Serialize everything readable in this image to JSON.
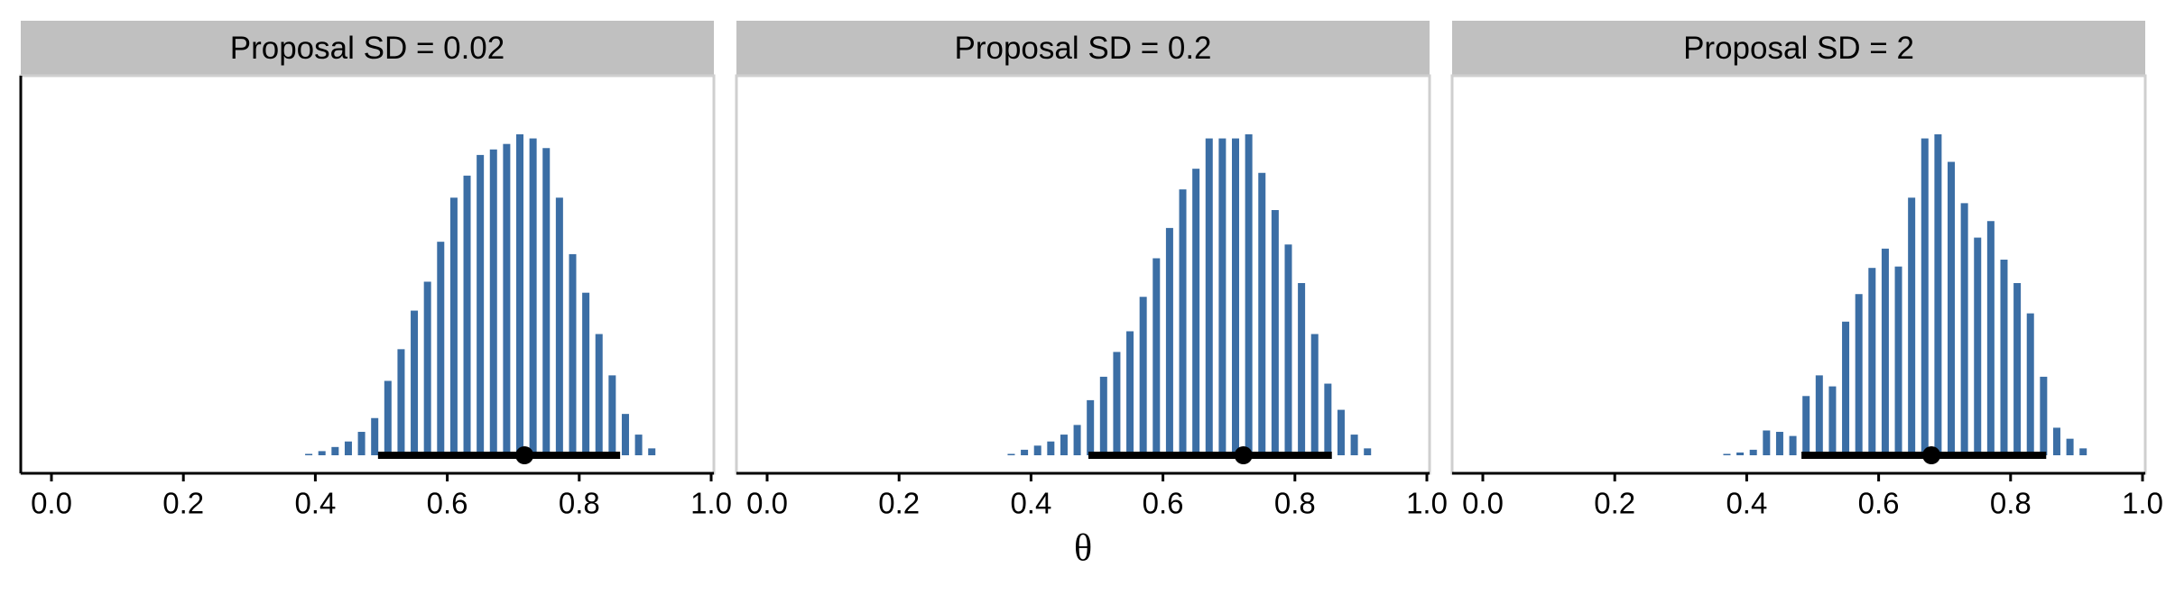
{
  "chart_data": [
    {
      "type": "bar",
      "title": "Proposal SD = 0.02",
      "color": "#3b6ea5",
      "x": [
        0.39,
        0.41,
        0.43,
        0.45,
        0.47,
        0.49,
        0.51,
        0.53,
        0.55,
        0.57,
        0.59,
        0.61,
        0.63,
        0.65,
        0.67,
        0.69,
        0.71,
        0.73,
        0.75,
        0.77,
        0.79,
        0.81,
        0.83,
        0.85,
        0.87,
        0.89,
        0.91
      ],
      "values": [
        1,
        3,
        6,
        10,
        17,
        27,
        54,
        77,
        105,
        126,
        155,
        187,
        203,
        218,
        222,
        226,
        233,
        230,
        223,
        187,
        146,
        118,
        88,
        58,
        30,
        15,
        5
      ],
      "point": 0.717,
      "interval": [
        0.495,
        0.862
      ],
      "xlim": [
        0,
        1
      ],
      "ylim": [
        0,
        250
      ],
      "xticks": [
        {
          "value": 0,
          "label": "0.0"
        },
        0.2,
        0.4,
        0.6,
        0.8,
        {
          "value": 1,
          "label": "1.0"
        }
      ]
    },
    {
      "type": "bar",
      "title": "Proposal SD = 0.2",
      "color": "#3b6ea5",
      "xlabel": "θ",
      "x": [
        0.37,
        0.39,
        0.41,
        0.43,
        0.45,
        0.47,
        0.49,
        0.51,
        0.53,
        0.55,
        0.57,
        0.59,
        0.61,
        0.63,
        0.65,
        0.67,
        0.69,
        0.71,
        0.73,
        0.75,
        0.77,
        0.79,
        0.81,
        0.83,
        0.85,
        0.87,
        0.89,
        0.91
      ],
      "values": [
        1,
        4,
        7,
        10,
        15,
        22,
        40,
        57,
        75,
        90,
        115,
        143,
        165,
        193,
        208,
        230,
        230,
        230,
        233,
        205,
        178,
        153,
        125,
        88,
        52,
        33,
        15,
        5
      ],
      "point": 0.722,
      "interval": [
        0.487,
        0.856
      ],
      "xlim": [
        0,
        1
      ],
      "ylim": [
        0,
        250
      ],
      "xticks": [
        {
          "value": 0,
          "label": "0.0"
        },
        0.2,
        0.4,
        0.6,
        0.8,
        {
          "value": 1,
          "label": "1.0"
        }
      ]
    },
    {
      "type": "bar",
      "title": "Proposal SD = 2",
      "color": "#3b6ea5",
      "x": [
        0.37,
        0.39,
        0.41,
        0.43,
        0.45,
        0.47,
        0.49,
        0.51,
        0.53,
        0.55,
        0.57,
        0.59,
        0.61,
        0.63,
        0.65,
        0.67,
        0.69,
        0.71,
        0.73,
        0.75,
        0.77,
        0.79,
        0.81,
        0.83,
        0.85,
        0.87,
        0.89,
        0.91
      ],
      "values": [
        1,
        2,
        4,
        18,
        17,
        14,
        43,
        58,
        50,
        97,
        117,
        136,
        150,
        137,
        187,
        230,
        233,
        213,
        183,
        158,
        170,
        142,
        125,
        103,
        57,
        20,
        12,
        5
      ],
      "point": 0.68,
      "interval": [
        0.483,
        0.854
      ],
      "xlim": [
        0,
        1
      ],
      "ylim": [
        0,
        250
      ],
      "xticks": [
        {
          "value": 0,
          "label": "0.0"
        },
        0.2,
        0.4,
        0.6,
        0.8,
        {
          "value": 1,
          "label": "1.0"
        }
      ]
    }
  ]
}
